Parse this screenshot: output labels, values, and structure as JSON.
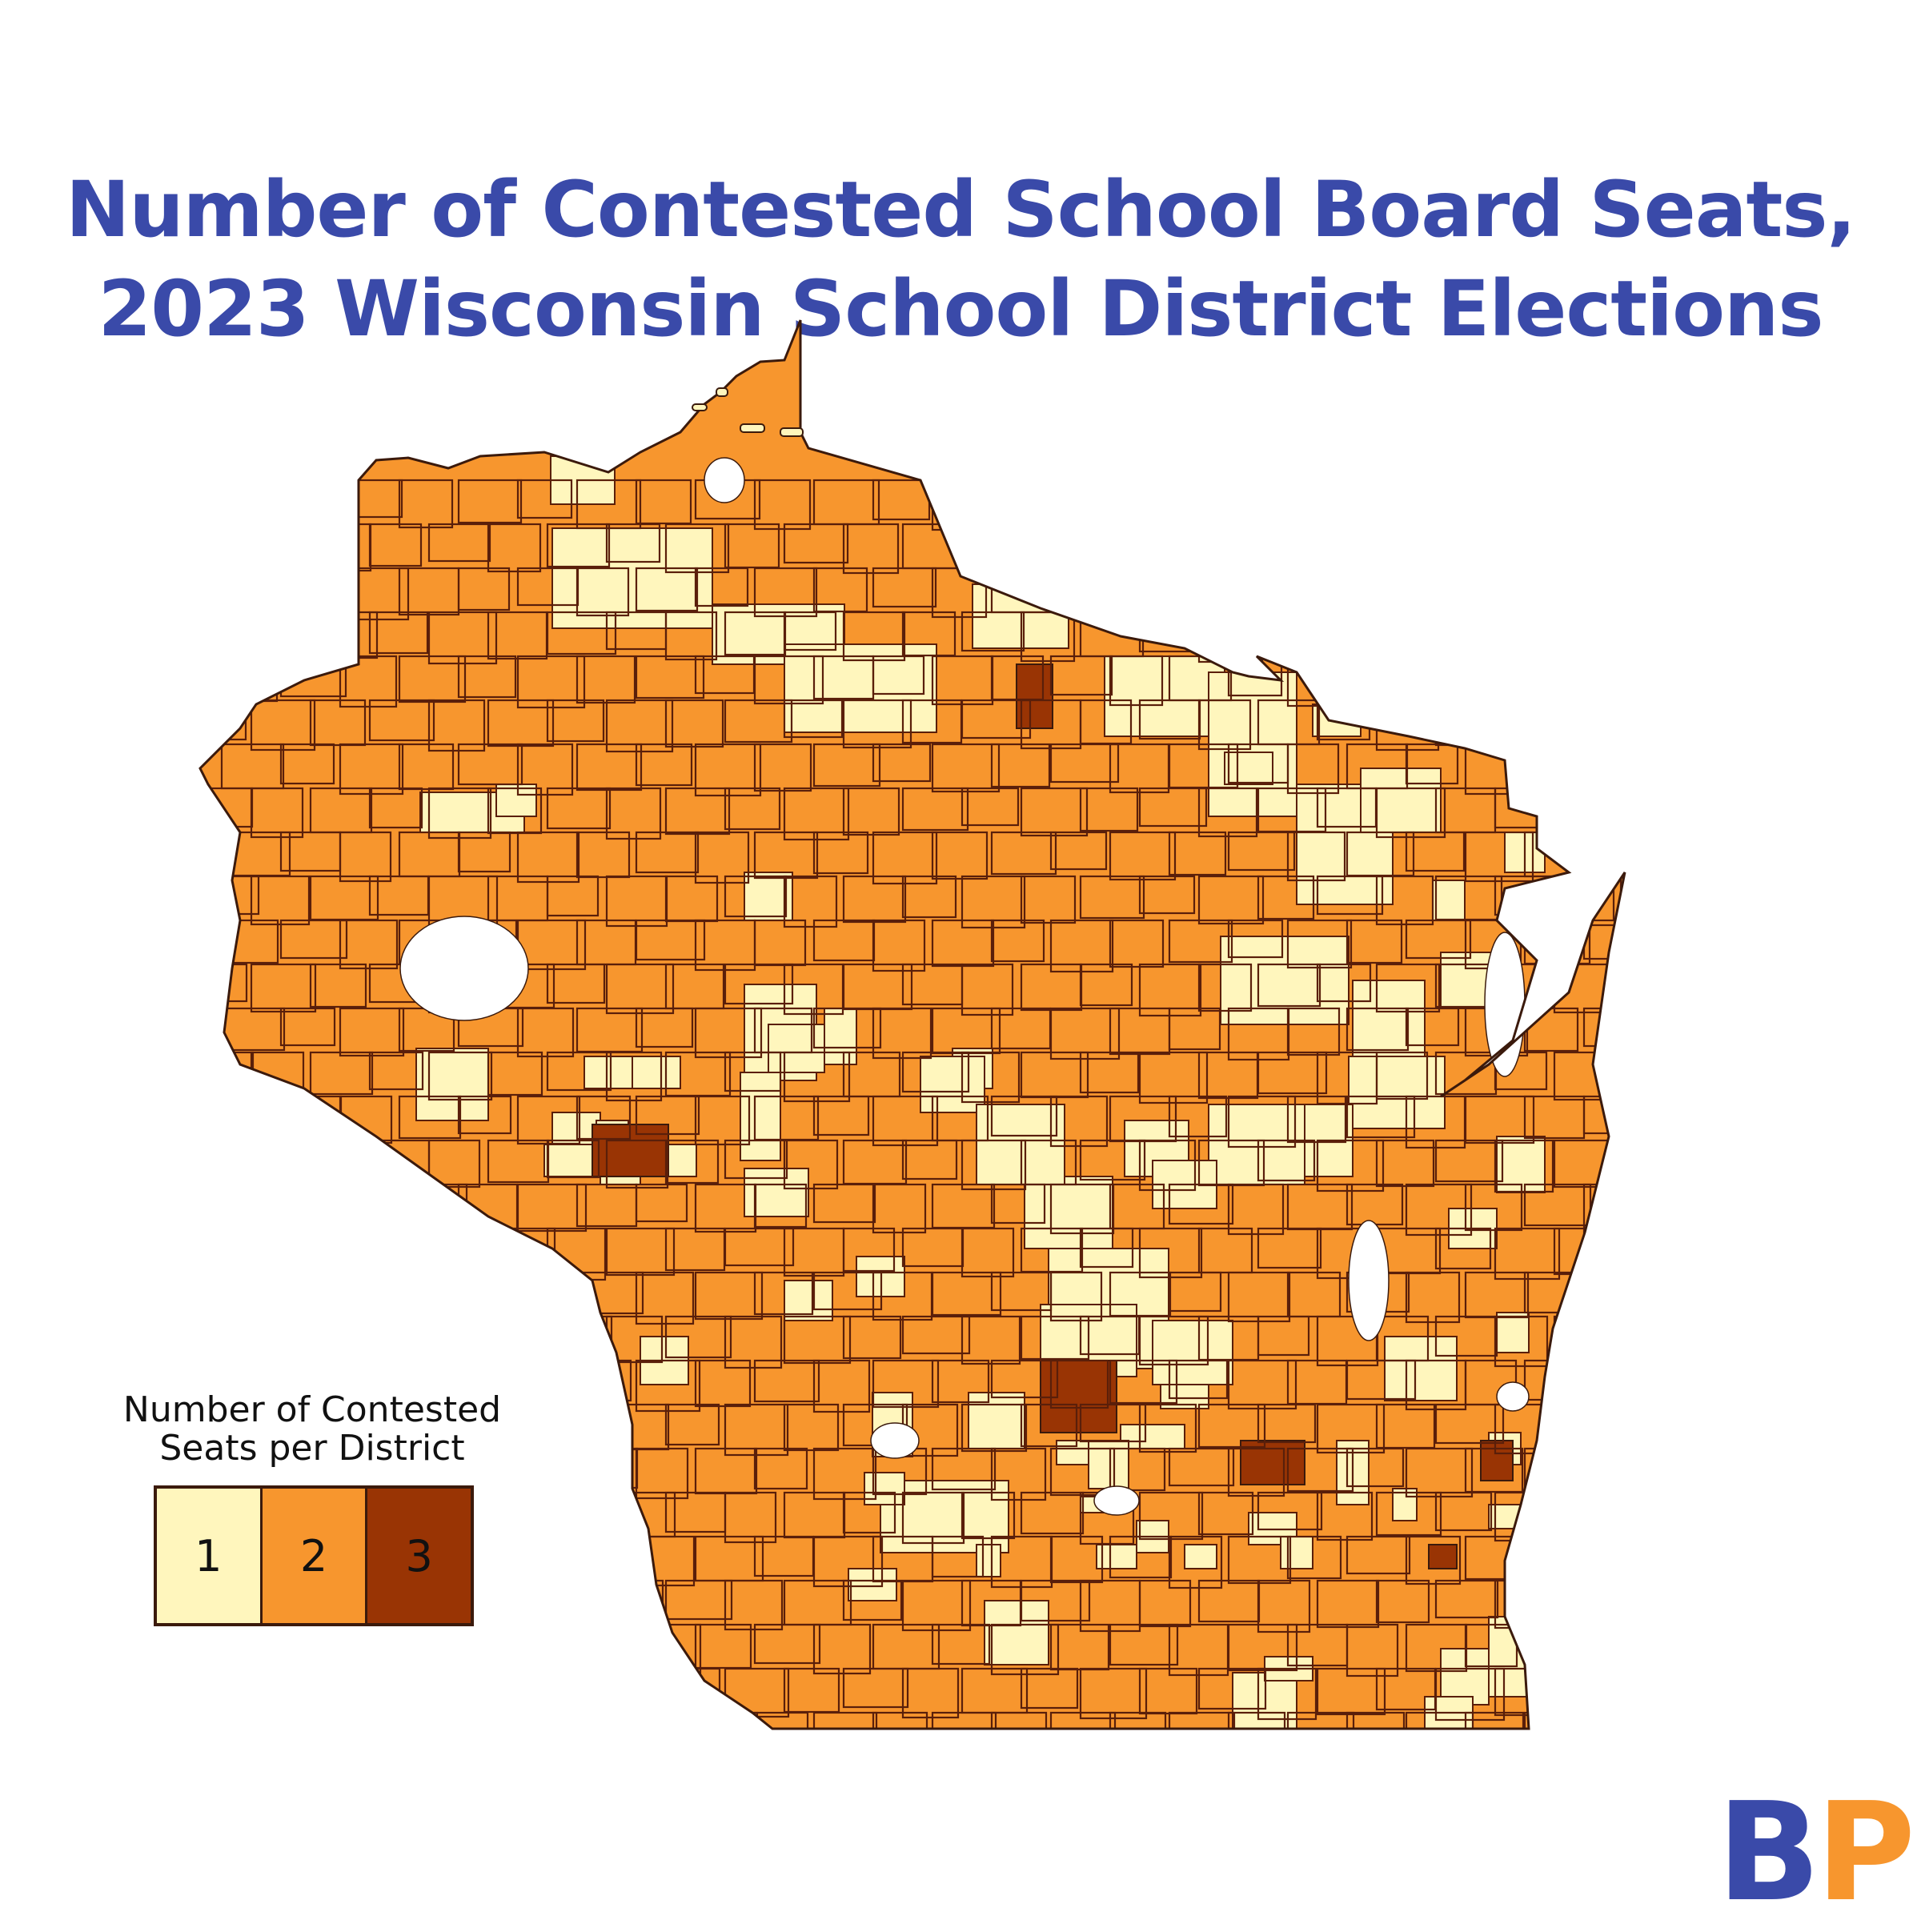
{
  "title": {
    "line1": "Number of Contested School Board Seats,",
    "line2": "2023 Wisconsin School District Elections"
  },
  "legend": {
    "title_line1": "Number of Contested",
    "title_line2": "Seats per District",
    "items": [
      {
        "label": "1",
        "color": "#fff6bd"
      },
      {
        "label": "2",
        "color": "#f7962e"
      },
      {
        "label": "3",
        "color": "#993404"
      }
    ]
  },
  "map": {
    "region": "Wisconsin school districts",
    "fill_default": "#f7962e",
    "district_border": "#5a1f0a",
    "no_data_color": "#ffffff"
  },
  "logo": {
    "letter1": "B",
    "letter2": "P",
    "color1": "#3a4aa9",
    "color2": "#f7962e"
  }
}
